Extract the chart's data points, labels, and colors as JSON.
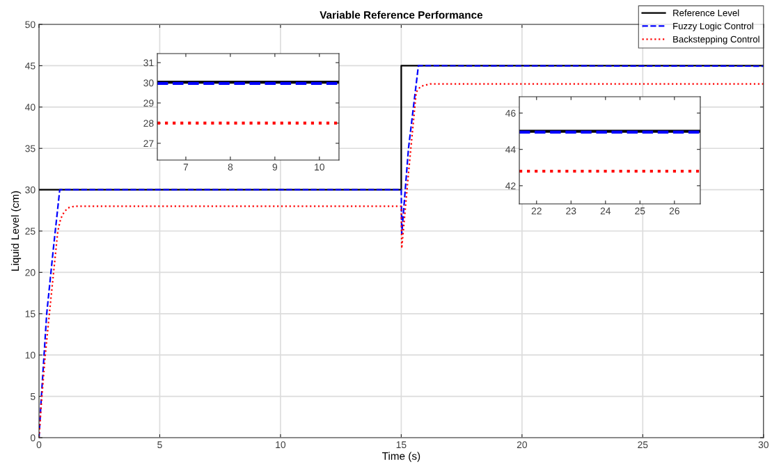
{
  "chart_data": [
    {
      "type": "line",
      "title": "Variable Reference Performance",
      "xlabel": "Time (s)",
      "ylabel": "Liquid Level (cm)",
      "xlim": [
        0,
        30
      ],
      "ylim": [
        0,
        50
      ],
      "xticks": [
        0,
        5,
        10,
        15,
        20,
        25,
        30
      ],
      "yticks": [
        0,
        5,
        10,
        15,
        20,
        25,
        30,
        35,
        40,
        45,
        50
      ],
      "grid": true,
      "legend": "top right",
      "series": [
        {
          "name": "Reference Level",
          "color": "#000000",
          "line_style": "solid",
          "x": [
            0,
            15,
            15,
            30
          ],
          "values": [
            30,
            30,
            45,
            45
          ]
        },
        {
          "name": "Fuzzy Logic Control",
          "color": "#0000ff",
          "line_style": "dashed",
          "x": [
            0,
            0.1,
            0.32,
            0.6,
            0.86,
            15,
            15.02,
            15.3,
            15.71,
            30
          ],
          "values": [
            0,
            5,
            15,
            23,
            30,
            30,
            24.6,
            35,
            45,
            44.95
          ]
        },
        {
          "name": "Backstepping Control",
          "color": "#ff0000",
          "line_style": "dotted",
          "x": [
            0,
            0.12,
            0.26,
            0.43,
            0.78,
            0.9,
            1.04,
            1.2,
            1.47,
            15,
            15.02,
            15.3,
            15.62,
            15.8,
            16.2,
            30
          ],
          "values": [
            0,
            5,
            10,
            15,
            25,
            26.5,
            27.3,
            27.8,
            28,
            28,
            22.9,
            32,
            41.8,
            42.5,
            42.8,
            42.8
          ]
        }
      ]
    },
    {
      "type": "line",
      "xlim": [
        6.36,
        10.44
      ],
      "ylim": [
        26.17,
        31.45
      ],
      "xticks": [
        7,
        8,
        9,
        10
      ],
      "yticks": [
        27,
        28,
        29,
        30,
        31
      ],
      "grid": false,
      "series": [
        {
          "color": "#000000",
          "line_style": "solid",
          "x": [
            6.36,
            10.44
          ],
          "values": [
            30.03,
            30.03
          ]
        },
        {
          "color": "#0000ff",
          "line_style": "dashed",
          "x": [
            6.36,
            10.44
          ],
          "values": [
            29.97,
            29.97
          ]
        },
        {
          "color": "#ff0000",
          "line_style": "dotted",
          "x": [
            6.36,
            10.44
          ],
          "values": [
            28,
            28
          ]
        }
      ]
    },
    {
      "type": "line",
      "xlim": [
        21.5,
        26.75
      ],
      "ylim": [
        41.0,
        46.9
      ],
      "xticks": [
        22,
        23,
        24,
        25,
        26
      ],
      "yticks": [
        42,
        44,
        46
      ],
      "grid": false,
      "series": [
        {
          "color": "#000000",
          "line_style": "solid",
          "x": [
            21.5,
            26.75
          ],
          "values": [
            45,
            45
          ]
        },
        {
          "color": "#0000ff",
          "line_style": "dashed",
          "x": [
            21.5,
            26.75
          ],
          "values": [
            44.95,
            44.95
          ]
        },
        {
          "color": "#ff0000",
          "line_style": "dotted",
          "x": [
            21.5,
            26.75
          ],
          "values": [
            42.8,
            42.8
          ]
        }
      ]
    }
  ]
}
